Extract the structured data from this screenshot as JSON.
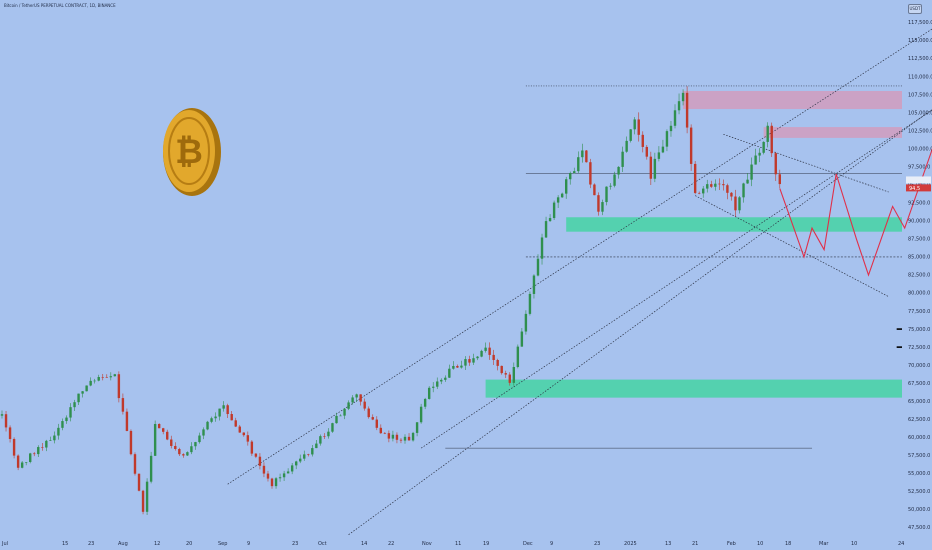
{
  "header": {
    "title": "Bitcoin / TetherUS PERPETUAL CONTRACT, 1D, BINANCE",
    "currency": "USDT"
  },
  "price_markers": {
    "last_price": "94,5",
    "last_price_value": 94500,
    "previous_price_value": 95600
  },
  "colors": {
    "background": "#a7c2ee",
    "up_candle": "#2f8f4e",
    "down_candle": "#c0392b",
    "support_zone": "#45d3a3",
    "resistance_zone": "#d49aba",
    "projection": "#e0304a"
  },
  "chart_data": {
    "type": "candlestick",
    "title": "",
    "xlabel": "",
    "ylabel": "",
    "ylim": [
      46000,
      122000
    ],
    "y_ticks": [
      47500,
      50000,
      52500,
      55000,
      57500,
      60000,
      62500,
      65000,
      67500,
      70000,
      72500,
      75000,
      77500,
      80000,
      82500,
      85000,
      87500,
      90000,
      92500,
      95000,
      97500,
      100000,
      102500,
      105000,
      107500,
      110000,
      112500,
      115000,
      117500
    ],
    "y_tick_labels": [
      "47,500.0",
      "50,000.0",
      "52,500.0",
      "55,000.0",
      "57,500.0",
      "60,000.0",
      "62,500.0",
      "65,000.0",
      "67,500.0",
      "70,000.0",
      "72,500.0",
      "75,000.0",
      "77,500.0",
      "80,000.0",
      "82,500.0",
      "85,000.0",
      "87,500.0",
      "90,000.0",
      "92,500.0",
      "95,000.0",
      "97,500.0",
      "100,000.0",
      "102,500.0",
      "105,000.0",
      "107,500.0",
      "110,000.0",
      "112,500.0",
      "115,000.0",
      "117,500.0"
    ],
    "x_ticks": [
      "Jul",
      "15",
      "23",
      "Aug",
      "12",
      "20",
      "Sep",
      "9",
      "23",
      "Oct",
      "14",
      "22",
      "Nov",
      "11",
      "19",
      "Dec",
      "9",
      "23",
      "2025",
      "13",
      "21",
      "Feb",
      "10",
      "18",
      "Mar",
      "10",
      "24"
    ],
    "price_path": [
      [
        "2024-07-01",
        63000
      ],
      [
        "2024-07-05",
        56000
      ],
      [
        "2024-07-14",
        60500
      ],
      [
        "2024-07-22",
        67500
      ],
      [
        "2024-07-29",
        68500
      ],
      [
        "2024-08-05",
        50000
      ],
      [
        "2024-08-08",
        61500
      ],
      [
        "2024-08-15",
        57500
      ],
      [
        "2024-08-25",
        64500
      ],
      [
        "2024-09-06",
        53500
      ],
      [
        "2024-09-16",
        58500
      ],
      [
        "2024-09-27",
        66000
      ],
      [
        "2024-10-03",
        60500
      ],
      [
        "2024-10-10",
        59500
      ],
      [
        "2024-10-15",
        67000
      ],
      [
        "2024-10-21",
        69500
      ],
      [
        "2024-10-29",
        72000
      ],
      [
        "2024-11-04",
        67500
      ],
      [
        "2024-11-13",
        90000
      ],
      [
        "2024-11-22",
        99500
      ],
      [
        "2024-11-26",
        91500
      ],
      [
        "2024-12-05",
        103500
      ],
      [
        "2024-12-09",
        96500
      ],
      [
        "2024-12-17",
        108000
      ],
      [
        "2024-12-20",
        93500
      ],
      [
        "2024-12-26",
        95500
      ],
      [
        "2024-12-30",
        92000
      ],
      [
        "2025-01-07",
        102500
      ],
      [
        "2025-01-10",
        94500
      ]
    ],
    "projection_path": [
      [
        "2025-01-10",
        94500
      ],
      [
        "2025-01-16",
        85000
      ],
      [
        "2025-01-18",
        89000
      ],
      [
        "2025-01-21",
        86000
      ],
      [
        "2025-01-24",
        96500
      ],
      [
        "2025-01-29",
        87500
      ],
      [
        "2025-02-01",
        82500
      ],
      [
        "2025-02-07",
        92000
      ],
      [
        "2025-02-10",
        89000
      ],
      [
        "2025-02-20",
        105000
      ],
      [
        "2025-02-24",
        100500
      ],
      [
        "2025-03-03",
        117500
      ]
    ],
    "zones": [
      {
        "kind": "resistance",
        "from": "2024-12-17",
        "to": "2025-03-24",
        "low": 105500,
        "high": 108000
      },
      {
        "kind": "resistance",
        "from": "2025-01-06",
        "to": "2025-03-24",
        "low": 101500,
        "high": 103000
      },
      {
        "kind": "support",
        "from": "2024-11-18",
        "to": "2025-03-24",
        "low": 88500,
        "high": 90500
      },
      {
        "kind": "support",
        "from": "2024-10-29",
        "to": "2025-03-24",
        "low": 65500,
        "high": 68000
      }
    ],
    "horizontal_levels": [
      {
        "price": 108700,
        "from": "2024-11-08",
        "to": "2025-02-26",
        "style": "dotted"
      },
      {
        "price": 96600,
        "from": "2024-11-08",
        "to": "2025-02-26",
        "style": "solid"
      },
      {
        "price": 85000,
        "from": "2024-11-08",
        "to": "2025-02-26",
        "style": "dashed"
      },
      {
        "price": 75000,
        "from": "2025-02-08",
        "to": "2025-03-25",
        "style": "thick"
      },
      {
        "price": 72500,
        "from": "2025-02-08",
        "to": "2025-03-25",
        "style": "thick"
      },
      {
        "price": 58500,
        "from": "2024-10-19",
        "to": "2025-01-18",
        "style": "solid"
      }
    ],
    "trendlines": [
      {
        "from": [
          "2024-08-26",
          53500
        ],
        "to": [
          "2025-03-01",
          121000
        ],
        "style": "dotted"
      },
      {
        "from": [
          "2024-09-25",
          46500
        ],
        "to": [
          "2025-03-27",
          121000
        ],
        "style": "dotted"
      },
      {
        "from": [
          "2024-10-13",
          58500
        ],
        "to": [
          "2025-03-19",
          116500
        ],
        "style": "dotted"
      },
      {
        "from": [
          "2024-12-20",
          93500
        ],
        "to": [
          "2025-02-06",
          79500
        ],
        "style": "dotted"
      },
      {
        "from": [
          "2024-12-27",
          102000
        ],
        "to": [
          "2025-02-06",
          94000
        ],
        "style": "dotted"
      }
    ],
    "grid": false,
    "legend": "none"
  }
}
